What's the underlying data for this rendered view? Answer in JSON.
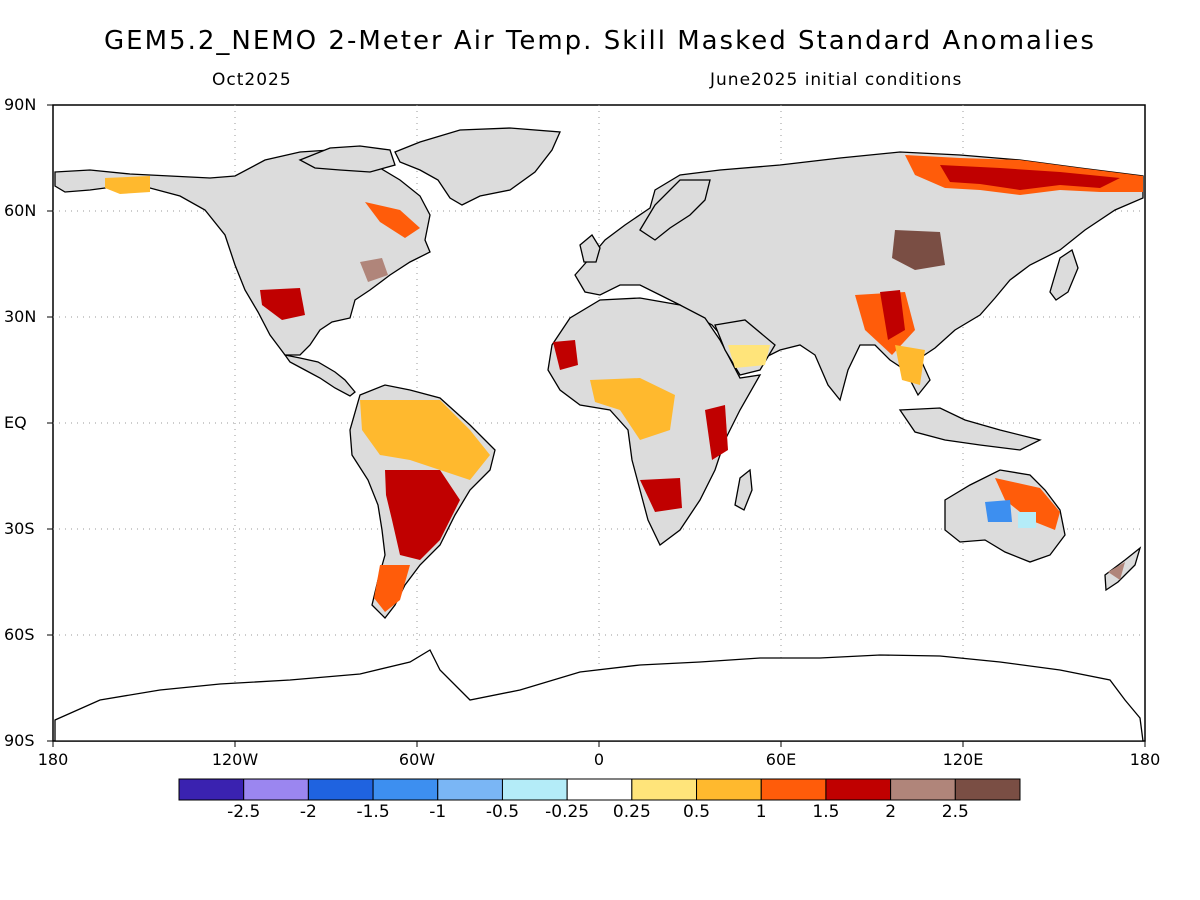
{
  "title": "GEM5.2_NEMO 2-Meter Air Temp. Skill Masked Standard Anomalies",
  "subtitle_left": "Oct2025",
  "subtitle_right": "June2025 initial conditions",
  "lat_labels": [
    "90N",
    "60N",
    "30N",
    "EQ",
    "30S",
    "60S",
    "90S"
  ],
  "lon_labels": [
    "180",
    "120W",
    "60W",
    "0",
    "60E",
    "120E",
    "180"
  ],
  "colors": {
    "land_no_skill": "#dcdcdc",
    "ocean": "#ffffff",
    "coast": "#000000"
  },
  "colorbar": {
    "colors": [
      "#3a22b0",
      "#9b86f0",
      "#1f63e0",
      "#3d8ff0",
      "#7ab6f5",
      "#b4ecf8",
      "#ffffff",
      "#ffe47a",
      "#ffb92e",
      "#ff5c0a",
      "#c00000",
      "#b0857a",
      "#7a4e44"
    ],
    "labels": [
      "-2.5",
      "-2",
      "-1.5",
      "-1",
      "-0.5",
      "-0.25",
      "0.25",
      "0.5",
      "1",
      "1.5",
      "2",
      "2.5"
    ]
  }
}
